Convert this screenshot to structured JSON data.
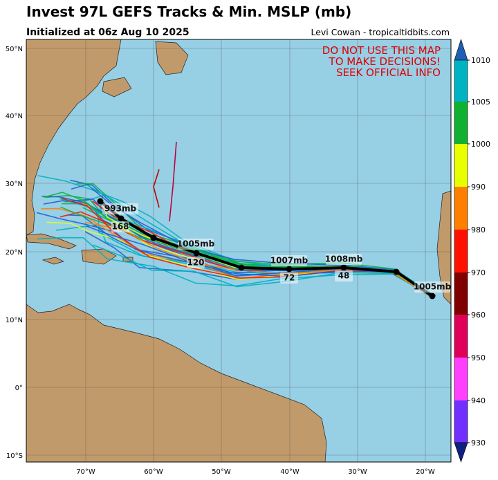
{
  "header": {
    "title": "Invest 97L GEFS Tracks & Min. MSLP (mb)",
    "subtitle": "Initialized at 06z Aug 10 2025",
    "credit": "Levi Cowan - tropicaltidbits.com"
  },
  "warning": [
    "DO NOT USE THIS MAP",
    "TO MAKE DECISIONS!",
    "SEEK OFFICIAL INFO"
  ],
  "lat_labels": [
    "50°N",
    "40°N",
    "30°N",
    "20°N",
    "10°N",
    "0°",
    "10°S"
  ],
  "lon_labels": [
    "70°W",
    "60°W",
    "50°W",
    "40°W",
    "30°W",
    "20°W"
  ],
  "colorbar_labels": [
    1010,
    1005,
    1000,
    990,
    980,
    970,
    960,
    950,
    940,
    930
  ],
  "track_labels": [
    "993mb",
    "168",
    "1005mb",
    "120",
    "1007mb",
    "72",
    "1008mb",
    "48",
    "1005mb"
  ]
}
